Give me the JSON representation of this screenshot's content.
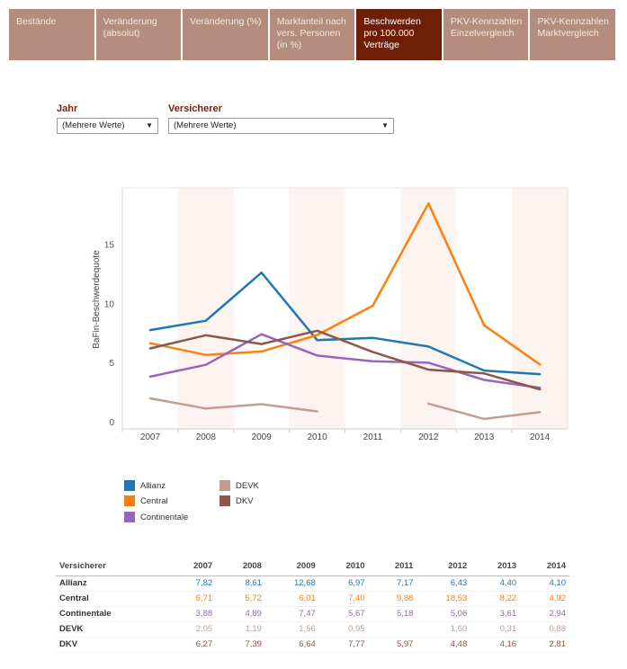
{
  "tabs": [
    {
      "label": "Bestände"
    },
    {
      "label": "Veränderung (absolut)"
    },
    {
      "label": "Veränderung (%)"
    },
    {
      "label": "Marktanteil nach vers. Personen (in %)"
    },
    {
      "label": "Beschwerden pro 100.000 Verträge",
      "active": true
    },
    {
      "label": "PKV-Kennzahlen Einzelvergleich"
    },
    {
      "label": "PKV-Kennzahlen Marktvergleich"
    }
  ],
  "filters": {
    "jahr_label": "Jahr",
    "jahr_value": "(Mehrere Werte)",
    "versicherer_label": "Versicherer",
    "versicherer_value": "(Mehrere Werte)"
  },
  "colors": {
    "tab": "#b48d7e",
    "tab_active": "#6e1f05",
    "label": "#7a1f0c",
    "band": "#fdf3f1"
  },
  "chart_data": {
    "type": "line",
    "xlabel": "",
    "ylabel": "BaFin-Beschwerdequote",
    "ylim": [
      0,
      19
    ],
    "y_ticks": [
      "0",
      "5",
      "10",
      "15"
    ],
    "categories": [
      "2007",
      "2008",
      "2009",
      "2010",
      "2011",
      "2012",
      "2013",
      "2014"
    ],
    "grid": false,
    "legend_placement": "bottom",
    "series": [
      {
        "name": "Allianz",
        "color": "#1f77b4",
        "values": [
          7.82,
          8.61,
          12.68,
          6.97,
          7.17,
          6.43,
          4.4,
          4.1
        ]
      },
      {
        "name": "Central",
        "color": "#ff7f0e",
        "values": [
          6.71,
          5.72,
          6.01,
          7.4,
          9.88,
          18.53,
          8.22,
          4.92
        ]
      },
      {
        "name": "Continentale",
        "color": "#9467bd",
        "values": [
          3.88,
          4.89,
          7.47,
          5.67,
          5.18,
          5.06,
          3.61,
          2.94
        ]
      },
      {
        "name": "DEVK",
        "color": "#c49c94",
        "values": [
          2.05,
          1.19,
          1.56,
          0.95,
          null,
          1.6,
          0.31,
          0.88
        ]
      },
      {
        "name": "DKV",
        "color": "#8c564b",
        "values": [
          6.27,
          7.39,
          6.64,
          7.77,
          5.97,
          4.48,
          4.16,
          2.81
        ]
      }
    ]
  },
  "table": {
    "header": "Versicherer",
    "columns": [
      "2007",
      "2008",
      "2009",
      "2010",
      "2011",
      "2012",
      "2013",
      "2014"
    ],
    "rows": [
      {
        "name": "Allianz",
        "cells": [
          "7,82",
          "8,61",
          "12,68",
          "6,97",
          "7,17",
          "6,43",
          "4,40",
          "4,10"
        ]
      },
      {
        "name": "Central",
        "cells": [
          "6,71",
          "5,72",
          "6,01",
          "7,40",
          "9,88",
          "18,53",
          "8,22",
          "4,92"
        ]
      },
      {
        "name": "Continentale",
        "cells": [
          "3,88",
          "4,89",
          "7,47",
          "5,67",
          "5,18",
          "5,06",
          "3,61",
          "2,94"
        ]
      },
      {
        "name": "DEVK",
        "cells": [
          "2,05",
          "1,19",
          "1,56",
          "0,95",
          "",
          "1,60",
          "0,31",
          "0,88"
        ]
      },
      {
        "name": "DKV",
        "cells": [
          "6,27",
          "7,39",
          "6,64",
          "7,77",
          "5,97",
          "4,48",
          "4,16",
          "2,81"
        ]
      }
    ]
  }
}
